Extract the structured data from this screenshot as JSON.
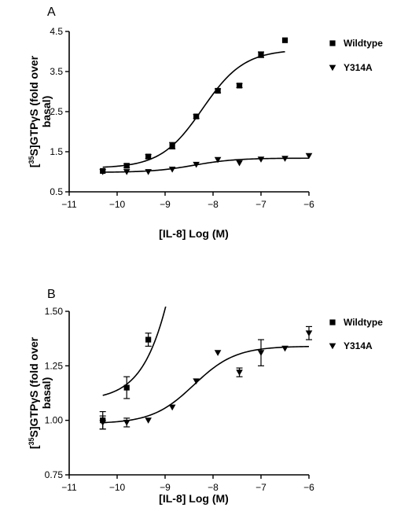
{
  "chart_data": [
    {
      "type": "scatter",
      "panel_label": "A",
      "xlabel": "[IL-8] Log (M)",
      "ylabel": [
        "[",
        "35",
        "S]GTPγS (fold over",
        "basal)"
      ],
      "xlim": [
        -11,
        -6
      ],
      "ylim": [
        0.5,
        4.5
      ],
      "xticks": [
        -11,
        -10,
        -9,
        -8,
        -7,
        -6
      ],
      "xtick_labels": [
        "−11",
        "−10",
        "−9",
        "−8",
        "−7",
        "−6"
      ],
      "yticks": [
        0.5,
        1.5,
        2.5,
        3.5,
        4.5
      ],
      "ytick_labels": [
        "0.5",
        "1.5",
        "2.5",
        "3.5",
        "4.5"
      ],
      "grid": false,
      "legend_position": "top-right",
      "series": [
        {
          "name": "Wildtype",
          "marker": "square",
          "x": [
            -10.3,
            -9.8,
            -9.35,
            -8.85,
            -8.35,
            -7.9,
            -7.45,
            -7.0,
            -6.5
          ],
          "y": [
            1.02,
            1.15,
            1.38,
            1.65,
            2.38,
            3.02,
            3.15,
            3.92,
            4.28
          ],
          "err": [
            0.04,
            0.05,
            0.05,
            0.08,
            0.05,
            0.05,
            0.05,
            0.07,
            0.04
          ],
          "fit": {
            "bottom": 1.09,
            "top": 4.05,
            "logEC50": -8.22,
            "hill": 1.0,
            "x_range": [
              -10.3,
              -6.5
            ]
          }
        },
        {
          "name": "Y314A",
          "marker": "triangle-down",
          "x": [
            -10.3,
            -9.8,
            -9.35,
            -8.85,
            -8.35,
            -7.9,
            -7.45,
            -7.0,
            -6.5,
            -6.0
          ],
          "y": [
            1.0,
            1.0,
            1.0,
            1.06,
            1.18,
            1.3,
            1.22,
            1.31,
            1.33,
            1.4
          ],
          "err": [
            0.02,
            0.02,
            0.02,
            0.02,
            0.02,
            0.02,
            0.02,
            0.03,
            0.02,
            0.02
          ],
          "fit": {
            "bottom": 0.985,
            "top": 1.34,
            "logEC50": -8.4,
            "hill": 1.0,
            "x_range": [
              -10.3,
              -6.0
            ]
          }
        }
      ]
    },
    {
      "type": "scatter",
      "panel_label": "B",
      "xlabel": "[IL-8] Log (M)",
      "ylabel": [
        "[",
        "35",
        "S]GTPγS (fold over",
        "basal)"
      ],
      "xlim": [
        -11,
        -6
      ],
      "ylim": [
        0.75,
        1.5
      ],
      "xticks": [
        -11,
        -10,
        -9,
        -8,
        -7,
        -6
      ],
      "xtick_labels": [
        "−11",
        "−10",
        "−9",
        "−8",
        "−7",
        "−6"
      ],
      "yticks": [
        0.75,
        1.0,
        1.25,
        1.5
      ],
      "ytick_labels": [
        "0.75",
        "1.00",
        "1.25",
        "1.50"
      ],
      "grid": false,
      "legend_position": "top-right",
      "series": [
        {
          "name": "Wildtype",
          "marker": "square",
          "x": [
            -10.3,
            -9.8,
            -9.35
          ],
          "y": [
            1.0,
            1.15,
            1.37
          ],
          "err": [
            0.04,
            0.05,
            0.03
          ],
          "fit": {
            "bottom": 1.09,
            "top": 4.05,
            "logEC50": -8.22,
            "hill": 1.0,
            "x_range": [
              -10.3,
              -8.94
            ]
          }
        },
        {
          "name": "Y314A",
          "marker": "triangle-down",
          "x": [
            -10.3,
            -9.8,
            -9.35,
            -8.85,
            -8.35,
            -7.9,
            -7.45,
            -7.0,
            -6.5,
            -6.0
          ],
          "y": [
            0.99,
            0.99,
            1.0,
            1.06,
            1.18,
            1.31,
            1.22,
            1.31,
            1.33,
            1.4
          ],
          "err": [
            0.03,
            0.02,
            0.0,
            0.0,
            0.0,
            0.0,
            0.02,
            0.06,
            0.0,
            0.03
          ],
          "fit": {
            "bottom": 0.985,
            "top": 1.34,
            "logEC50": -8.4,
            "hill": 1.0,
            "x_range": [
              -10.3,
              -6.0
            ]
          }
        }
      ]
    }
  ]
}
